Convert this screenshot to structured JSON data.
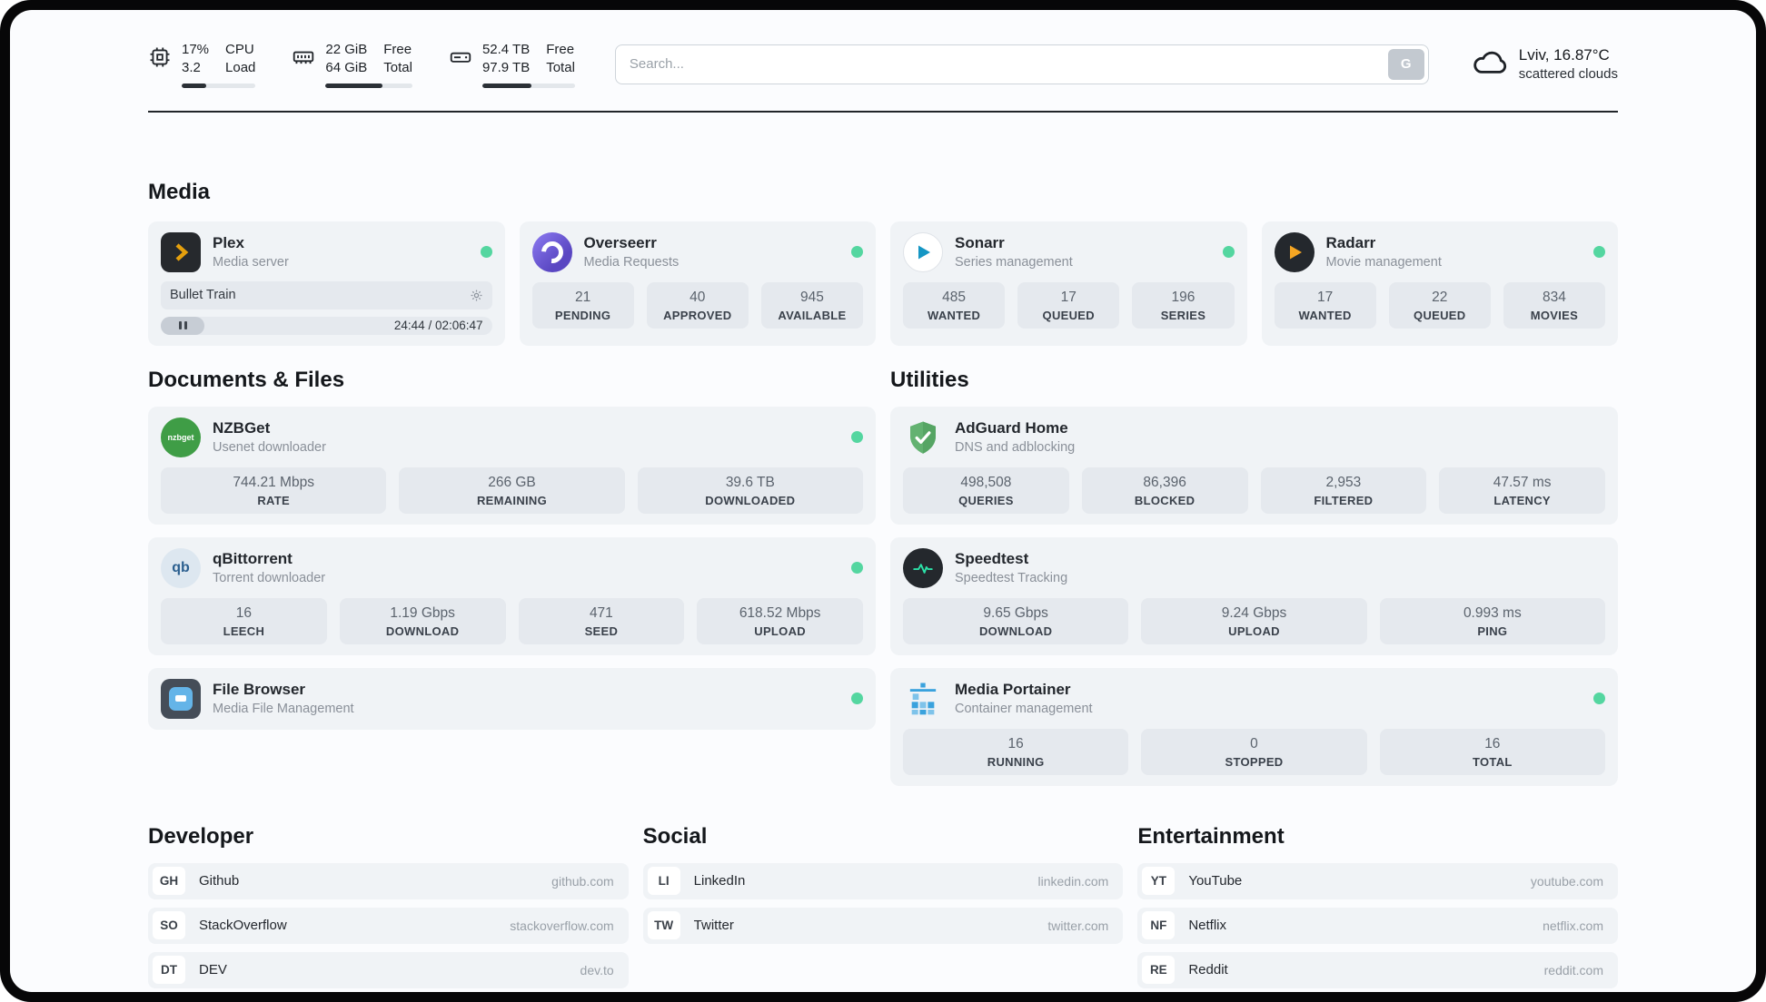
{
  "header": {
    "cpu": {
      "value_top": "17%",
      "value_bottom": "3.2",
      "label_top": "CPU",
      "label_bottom": "Load",
      "progress_percent": 33
    },
    "memory": {
      "value_top": "22 GiB",
      "value_bottom": "64 GiB",
      "label_top": "Free",
      "label_bottom": "Total",
      "progress_percent": 66
    },
    "disk": {
      "value_top": "52.4 TB",
      "value_bottom": "97.9 TB",
      "label_top": "Free",
      "label_bottom": "Total",
      "progress_percent": 53
    },
    "search": {
      "placeholder": "Search...",
      "button_label": "G"
    },
    "weather": {
      "location": "Lviv, 16.87°C",
      "condition": "scattered clouds"
    }
  },
  "sections": {
    "media": {
      "heading": "Media",
      "plex": {
        "title": "Plex",
        "subtitle": "Media server",
        "now_playing": "Bullet Train",
        "time": "24:44 / 02:06:47"
      },
      "overseerr": {
        "title": "Overseerr",
        "subtitle": "Media Requests",
        "stats": [
          {
            "value": "21",
            "label": "PENDING"
          },
          {
            "value": "40",
            "label": "APPROVED"
          },
          {
            "value": "945",
            "label": "AVAILABLE"
          }
        ]
      },
      "sonarr": {
        "title": "Sonarr",
        "subtitle": "Series management",
        "stats": [
          {
            "value": "485",
            "label": "WANTED"
          },
          {
            "value": "17",
            "label": "QUEUED"
          },
          {
            "value": "196",
            "label": "SERIES"
          }
        ]
      },
      "radarr": {
        "title": "Radarr",
        "subtitle": "Movie management",
        "stats": [
          {
            "value": "17",
            "label": "WANTED"
          },
          {
            "value": "22",
            "label": "QUEUED"
          },
          {
            "value": "834",
            "label": "MOVIES"
          }
        ]
      }
    },
    "documents": {
      "heading": "Documents & Files",
      "nzbget": {
        "title": "NZBGet",
        "subtitle": "Usenet downloader",
        "icon_text": "nzbget",
        "stats": [
          {
            "value": "744.21 Mbps",
            "label": "RATE"
          },
          {
            "value": "266 GB",
            "label": "REMAINING"
          },
          {
            "value": "39.6 TB",
            "label": "DOWNLOADED"
          }
        ]
      },
      "qbittorrent": {
        "title": "qBittorrent",
        "subtitle": "Torrent downloader",
        "icon_text": "qb",
        "stats": [
          {
            "value": "16",
            "label": "LEECH"
          },
          {
            "value": "1.19 Gbps",
            "label": "DOWNLOAD"
          },
          {
            "value": "471",
            "label": "SEED"
          },
          {
            "value": "618.52 Mbps",
            "label": "UPLOAD"
          }
        ]
      },
      "filebrowser": {
        "title": "File Browser",
        "subtitle": "Media File Management"
      }
    },
    "utilities": {
      "heading": "Utilities",
      "adguard": {
        "title": "AdGuard Home",
        "subtitle": "DNS and adblocking",
        "stats": [
          {
            "value": "498,508",
            "label": "QUERIES"
          },
          {
            "value": "86,396",
            "label": "BLOCKED"
          },
          {
            "value": "2,953",
            "label": "FILTERED"
          },
          {
            "value": "47.57 ms",
            "label": "LATENCY"
          }
        ]
      },
      "speedtest": {
        "title": "Speedtest",
        "subtitle": "Speedtest Tracking",
        "stats": [
          {
            "value": "9.65 Gbps",
            "label": "DOWNLOAD"
          },
          {
            "value": "9.24 Gbps",
            "label": "UPLOAD"
          },
          {
            "value": "0.993 ms",
            "label": "PING"
          }
        ]
      },
      "portainer": {
        "title": "Media Portainer",
        "subtitle": "Container management",
        "stats": [
          {
            "value": "16",
            "label": "RUNNING"
          },
          {
            "value": "0",
            "label": "STOPPED"
          },
          {
            "value": "16",
            "label": "TOTAL"
          }
        ]
      }
    }
  },
  "bookmarks": [
    {
      "heading": "Developer",
      "items": [
        {
          "abbr": "GH",
          "name": "Github",
          "url": "github.com"
        },
        {
          "abbr": "SO",
          "name": "StackOverflow",
          "url": "stackoverflow.com"
        },
        {
          "abbr": "DT",
          "name": "DEV",
          "url": "dev.to"
        }
      ]
    },
    {
      "heading": "Social",
      "items": [
        {
          "abbr": "LI",
          "name": "LinkedIn",
          "url": "linkedin.com"
        },
        {
          "abbr": "TW",
          "name": "Twitter",
          "url": "twitter.com"
        }
      ]
    },
    {
      "heading": "Entertainment",
      "items": [
        {
          "abbr": "YT",
          "name": "YouTube",
          "url": "youtube.com"
        },
        {
          "abbr": "NF",
          "name": "Netflix",
          "url": "netflix.com"
        },
        {
          "abbr": "RE",
          "name": "Reddit",
          "url": "reddit.com"
        }
      ]
    }
  ],
  "colors": {
    "status_green": "#54d6a0",
    "plex_amber": "#e5a00d",
    "radarr_amber": "#f5a623",
    "sonarr_teal": "#1596c4",
    "adguard_green": "#63b271",
    "speedtest_green": "#2ce0a7",
    "portainer_blue": "#3aa2dd",
    "overseerr_purple": "#6f5bd8"
  }
}
